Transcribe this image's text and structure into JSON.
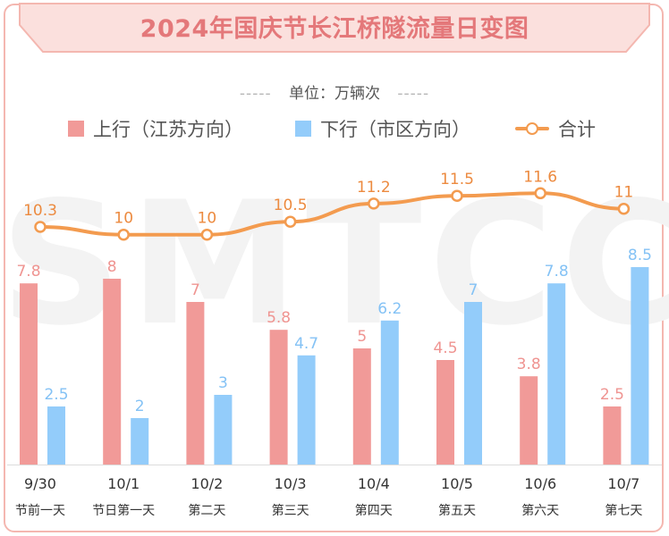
{
  "title": "2024年国庆节长江桥隧流量日变图",
  "unit": "单位：万辆次",
  "unit_dashes": "-----",
  "watermark": "SMTCC",
  "colors": {
    "outbound": "#f19a98",
    "inbound": "#93ccfa",
    "total": "#f39b4f",
    "outbound_label": "#ef9491",
    "inbound_label": "#84c2f5",
    "total_label": "#ec8a3f",
    "title": "#e4787a",
    "banner_fill": "#fbe0dd",
    "banner_stroke": "#f4b7b0"
  },
  "legend": [
    {
      "label": "上行（江苏方向）",
      "color": "#f19a98",
      "kind": "bar"
    },
    {
      "label": "下行（市区方向）",
      "color": "#93ccfa",
      "kind": "bar"
    },
    {
      "label": "合计",
      "color": "#f39b4f",
      "kind": "line"
    }
  ],
  "chart_data": {
    "type": "bar",
    "title": "2024年国庆节长江桥隧流量日变图",
    "unit": "单位：万辆次",
    "categories": [
      "9/30",
      "10/1",
      "10/2",
      "10/3",
      "10/4",
      "10/5",
      "10/6",
      "10/7"
    ],
    "subcategories": [
      "节前一天",
      "节日第一天",
      "第二天",
      "第三天",
      "第四天",
      "第五天",
      "第六天",
      "第七天"
    ],
    "series": [
      {
        "name": "上行（江苏方向）",
        "type": "bar",
        "values": [
          7.8,
          8,
          7,
          5.8,
          5,
          4.5,
          3.8,
          2.5
        ],
        "labels": [
          "7.8",
          "8",
          "7",
          "5.8",
          "5",
          "4.5",
          "3.8",
          "2.5"
        ]
      },
      {
        "name": "下行（市区方向）",
        "type": "bar",
        "values": [
          2.5,
          2,
          3,
          4.7,
          6.2,
          7,
          7.8,
          8.5
        ],
        "labels": [
          "2.5",
          "2",
          "3",
          "4.7",
          "6.2",
          "7",
          "7.8",
          "8.5"
        ]
      },
      {
        "name": "合计",
        "type": "line",
        "values": [
          10.3,
          10,
          10,
          10.5,
          11.2,
          11.5,
          11.6,
          11
        ],
        "labels": [
          "10.3",
          "10",
          "10",
          "10.5",
          "11.2",
          "11.5",
          "11.6",
          "11"
        ]
      }
    ],
    "legend_position": "top",
    "grid": false,
    "y_axis_visible": false
  }
}
